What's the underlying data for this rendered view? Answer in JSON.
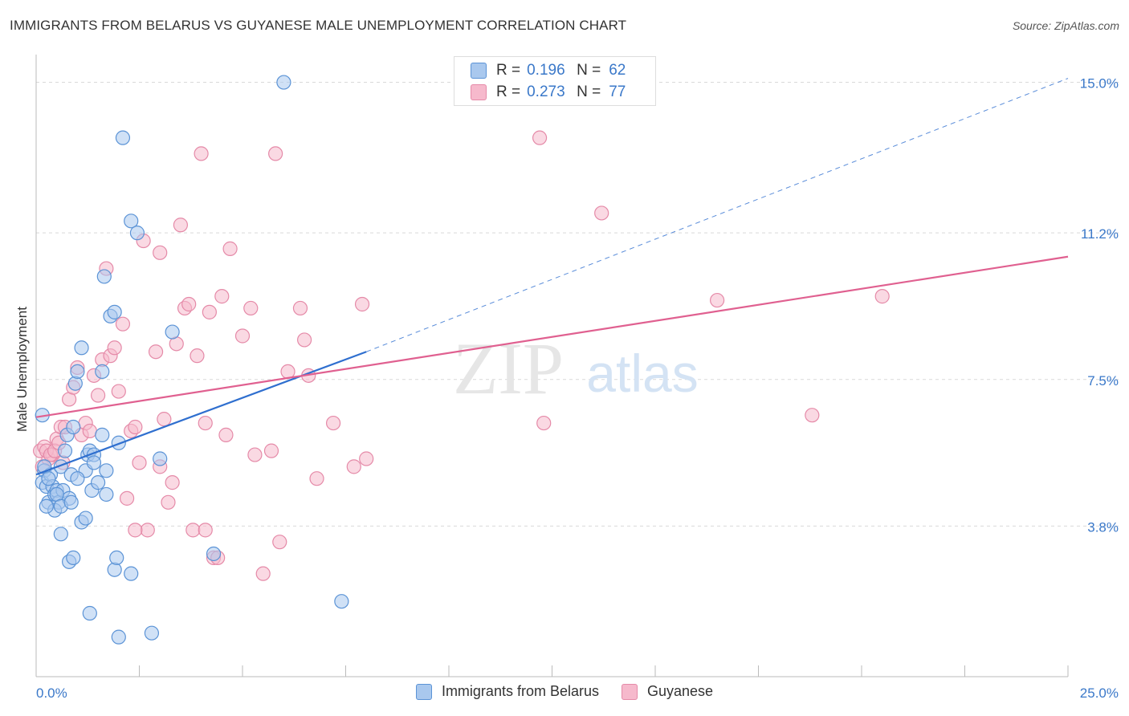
{
  "title": "IMMIGRANTS FROM BELARUS VS GUYANESE MALE UNEMPLOYMENT CORRELATION CHART",
  "source": "Source: ZipAtlas.com",
  "watermark_zip": "ZIP",
  "watermark_atlas": "atlas",
  "colors": {
    "belarus_fill": "#a9c8ee",
    "belarus_stroke": "#5b93d6",
    "belarus_line": "#2f6fcf",
    "guyanese_fill": "#f6b9cc",
    "guyanese_stroke": "#e58aa8",
    "guyanese_line": "#e06090",
    "axis_label": "#3a78c9",
    "grid": "#d9d9d9"
  },
  "legend": {
    "r_label": "R =",
    "n_label": "N =",
    "series": [
      {
        "r": "0.196",
        "n": "62"
      },
      {
        "r": "0.273",
        "n": "77"
      }
    ]
  },
  "chart_data": {
    "type": "scatter",
    "title": "IMMIGRANTS FROM BELARUS VS GUYANESE MALE UNEMPLOYMENT CORRELATION CHART",
    "xlabel": "",
    "ylabel": "Male Unemployment",
    "xlim": [
      0,
      25
    ],
    "ylim": [
      0,
      15.7
    ],
    "x_tick_labels": [
      "0.0%",
      "25.0%"
    ],
    "y_ticks": [
      3.8,
      7.5,
      11.2,
      15.0
    ],
    "y_tick_labels": [
      "3.8%",
      "7.5%",
      "11.2%",
      "15.0%"
    ],
    "series": [
      {
        "name": "Immigrants from Belarus",
        "r": 0.196,
        "n": 62,
        "points": [
          [
            0.15,
            6.6
          ],
          [
            0.2,
            5.2
          ],
          [
            0.15,
            4.9
          ],
          [
            0.25,
            4.8
          ],
          [
            0.3,
            4.4
          ],
          [
            0.35,
            5.1
          ],
          [
            0.4,
            4.8
          ],
          [
            0.45,
            4.6
          ],
          [
            0.5,
            4.7
          ],
          [
            0.55,
            4.4
          ],
          [
            0.6,
            5.3
          ],
          [
            0.65,
            4.7
          ],
          [
            0.7,
            5.7
          ],
          [
            0.75,
            6.1
          ],
          [
            0.8,
            4.5
          ],
          [
            0.85,
            5.1
          ],
          [
            0.9,
            6.3
          ],
          [
            0.95,
            7.4
          ],
          [
            1.0,
            7.7
          ],
          [
            1.1,
            8.3
          ],
          [
            1.2,
            5.2
          ],
          [
            1.25,
            5.6
          ],
          [
            1.3,
            5.7
          ],
          [
            1.35,
            4.7
          ],
          [
            1.4,
            5.6
          ],
          [
            1.5,
            4.9
          ],
          [
            1.6,
            6.1
          ],
          [
            1.7,
            4.6
          ],
          [
            1.8,
            9.1
          ],
          [
            1.9,
            9.2
          ],
          [
            2.0,
            5.9
          ],
          [
            2.1,
            13.6
          ],
          [
            2.3,
            11.5
          ],
          [
            2.45,
            11.2
          ],
          [
            0.6,
            3.6
          ],
          [
            0.8,
            2.9
          ],
          [
            0.9,
            3.0
          ],
          [
            1.1,
            3.9
          ],
          [
            1.2,
            4.0
          ],
          [
            1.3,
            1.6
          ],
          [
            1.9,
            2.7
          ],
          [
            1.95,
            3.0
          ],
          [
            2.0,
            1.0
          ],
          [
            2.3,
            2.6
          ],
          [
            2.8,
            1.1
          ],
          [
            3.0,
            5.5
          ],
          [
            3.3,
            8.7
          ],
          [
            4.3,
            3.1
          ],
          [
            6.0,
            15.0
          ],
          [
            7.4,
            1.9
          ],
          [
            1.6,
            7.7
          ],
          [
            1.65,
            10.1
          ],
          [
            0.2,
            5.3
          ],
          [
            0.5,
            4.6
          ],
          [
            1.0,
            5.0
          ],
          [
            1.4,
            5.4
          ],
          [
            1.7,
            5.2
          ],
          [
            0.3,
            5.0
          ],
          [
            0.45,
            4.2
          ],
          [
            0.6,
            4.3
          ],
          [
            0.85,
            4.4
          ],
          [
            0.25,
            4.3
          ]
        ]
      },
      {
        "name": "Guyanese",
        "r": 0.273,
        "n": 77,
        "points": [
          [
            0.1,
            5.7
          ],
          [
            0.15,
            5.3
          ],
          [
            0.2,
            5.8
          ],
          [
            0.3,
            5.5
          ],
          [
            0.4,
            5.6
          ],
          [
            0.5,
            6.0
          ],
          [
            0.6,
            6.3
          ],
          [
            0.7,
            6.3
          ],
          [
            0.8,
            7.0
          ],
          [
            0.9,
            7.3
          ],
          [
            1.0,
            7.8
          ],
          [
            1.1,
            6.1
          ],
          [
            1.2,
            6.4
          ],
          [
            1.3,
            6.2
          ],
          [
            1.4,
            7.6
          ],
          [
            1.5,
            7.1
          ],
          [
            1.6,
            8.0
          ],
          [
            1.7,
            10.3
          ],
          [
            1.8,
            8.1
          ],
          [
            1.9,
            8.3
          ],
          [
            2.0,
            7.2
          ],
          [
            2.1,
            8.9
          ],
          [
            2.2,
            4.5
          ],
          [
            2.3,
            6.2
          ],
          [
            2.4,
            6.3
          ],
          [
            2.5,
            5.4
          ],
          [
            2.6,
            11.0
          ],
          [
            2.7,
            3.7
          ],
          [
            2.9,
            8.2
          ],
          [
            3.0,
            10.7
          ],
          [
            3.1,
            6.5
          ],
          [
            3.2,
            4.4
          ],
          [
            3.3,
            4.9
          ],
          [
            3.4,
            8.4
          ],
          [
            3.5,
            11.4
          ],
          [
            3.6,
            9.3
          ],
          [
            3.7,
            9.4
          ],
          [
            3.8,
            3.7
          ],
          [
            3.9,
            8.1
          ],
          [
            4.0,
            13.2
          ],
          [
            4.1,
            6.4
          ],
          [
            4.2,
            9.2
          ],
          [
            4.3,
            3.0
          ],
          [
            4.4,
            3.0
          ],
          [
            4.5,
            9.6
          ],
          [
            4.6,
            6.1
          ],
          [
            4.7,
            10.8
          ],
          [
            5.0,
            8.6
          ],
          [
            5.2,
            9.3
          ],
          [
            5.3,
            5.6
          ],
          [
            5.5,
            2.6
          ],
          [
            5.7,
            5.7
          ],
          [
            5.8,
            13.2
          ],
          [
            5.9,
            3.4
          ],
          [
            6.1,
            7.7
          ],
          [
            6.4,
            9.3
          ],
          [
            6.5,
            8.5
          ],
          [
            6.6,
            7.6
          ],
          [
            6.8,
            5.0
          ],
          [
            7.2,
            6.4
          ],
          [
            7.7,
            5.3
          ],
          [
            7.9,
            9.4
          ],
          [
            8.0,
            5.5
          ],
          [
            12.2,
            13.6
          ],
          [
            12.3,
            6.4
          ],
          [
            13.7,
            11.7
          ],
          [
            16.5,
            9.5
          ],
          [
            18.8,
            6.6
          ],
          [
            20.5,
            9.6
          ],
          [
            0.25,
            5.7
          ],
          [
            0.35,
            5.6
          ],
          [
            0.45,
            5.7
          ],
          [
            0.55,
            5.9
          ],
          [
            0.65,
            5.4
          ],
          [
            3.0,
            5.3
          ],
          [
            2.4,
            3.7
          ],
          [
            4.1,
            3.7
          ]
        ]
      }
    ],
    "trend_lines": [
      {
        "series": "Immigrants from Belarus",
        "from": [
          0,
          5.1
        ],
        "to": [
          8.0,
          8.2
        ],
        "style": "solid"
      },
      {
        "series": "Immigrants from Belarus",
        "from": [
          8.0,
          8.2
        ],
        "to": [
          25.0,
          15.1
        ],
        "style": "dashed"
      },
      {
        "series": "Guyanese",
        "from": [
          0,
          6.55
        ],
        "to": [
          25.0,
          10.6
        ],
        "style": "solid"
      }
    ],
    "legend_position": "top-center"
  },
  "bottom_legend": [
    "Immigrants from Belarus",
    "Guyanese"
  ]
}
